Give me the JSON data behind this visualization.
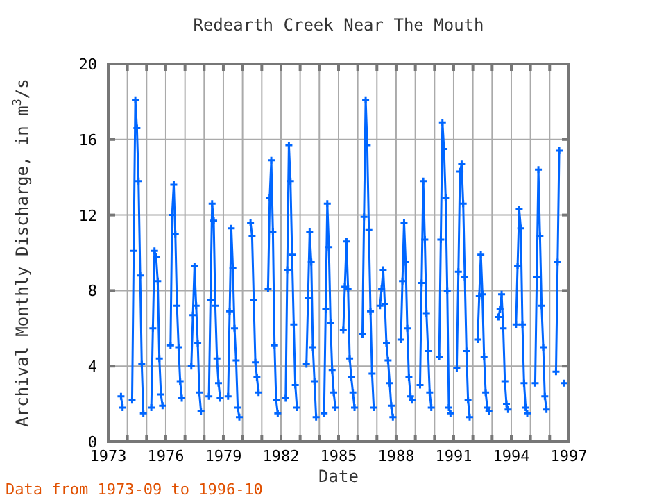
{
  "chart_data": {
    "type": "line",
    "title": "Redearth Creek Near The Mouth",
    "xlabel": "Date",
    "ylabel": "Archival Monthly Discharge, in m$^{3}$/s",
    "annotations": [
      "Data from 1973-09 to 1996-10"
    ],
    "x": [
      "1973-09",
      "1973-10",
      "1974-01",
      "1974-04",
      "1974-05",
      "1974-06",
      "1974-07",
      "1974-08",
      "1974-09",
      "1974-10",
      "1974-11",
      "1975-01",
      "1975-04",
      "1975-05",
      "1975-06",
      "1975-07",
      "1975-08",
      "1975-09",
      "1975-10",
      "1975-11",
      "1976-01",
      "1976-04",
      "1976-05",
      "1976-06",
      "1976-07",
      "1976-08",
      "1976-09",
      "1976-10",
      "1976-11",
      "1977-01",
      "1977-05",
      "1977-06",
      "1977-07",
      "1977-08",
      "1977-09",
      "1977-10",
      "1977-11",
      "1978-01",
      "1978-04",
      "1978-05",
      "1978-06",
      "1978-07",
      "1978-08",
      "1978-09",
      "1978-10",
      "1978-11",
      "1979-01",
      "1979-04",
      "1979-05",
      "1979-06",
      "1979-07",
      "1979-08",
      "1979-09",
      "1979-10",
      "1979-11",
      "1980-01",
      "1980-06",
      "1980-07",
      "1980-08",
      "1980-09",
      "1980-10",
      "1980-11",
      "1981-01",
      "1981-05",
      "1981-06",
      "1981-07",
      "1981-08",
      "1981-09",
      "1981-10",
      "1981-11",
      "1982-01",
      "1982-04",
      "1982-05",
      "1982-06",
      "1982-07",
      "1982-08",
      "1982-09",
      "1982-10",
      "1982-11",
      "1983-01",
      "1983-05",
      "1983-06",
      "1983-07",
      "1983-08",
      "1983-09",
      "1983-10",
      "1983-11",
      "1984-01",
      "1984-04",
      "1984-05",
      "1984-06",
      "1984-07",
      "1984-08",
      "1984-09",
      "1984-10",
      "1984-11",
      "1985-01",
      "1985-04",
      "1985-05",
      "1985-06",
      "1985-07",
      "1985-08",
      "1985-09",
      "1985-10",
      "1985-11",
      "1986-01",
      "1986-04",
      "1986-05",
      "1986-06",
      "1986-07",
      "1986-08",
      "1986-09",
      "1986-10",
      "1986-11",
      "1987-01",
      "1987-03",
      "1987-04",
      "1987-05",
      "1987-06",
      "1987-07",
      "1987-08",
      "1987-09",
      "1987-10",
      "1987-11",
      "1988-01",
      "1988-04",
      "1988-05",
      "1988-06",
      "1988-07",
      "1988-08",
      "1988-09",
      "1988-10",
      "1988-11",
      "1989-01",
      "1989-04",
      "1989-05",
      "1989-06",
      "1989-07",
      "1989-08",
      "1989-09",
      "1989-10",
      "1989-11",
      "1990-01",
      "1990-04",
      "1990-05",
      "1990-06",
      "1990-07",
      "1990-08",
      "1990-09",
      "1990-10",
      "1990-11",
      "1991-01",
      "1991-03",
      "1991-04",
      "1991-05",
      "1991-06",
      "1991-07",
      "1991-08",
      "1991-09",
      "1991-10",
      "1991-11",
      "1992-01",
      "1992-04",
      "1992-05",
      "1992-06",
      "1992-07",
      "1992-08",
      "1992-09",
      "1992-10",
      "1992-11",
      "1993-01",
      "1993-05",
      "1993-06",
      "1993-07",
      "1993-08",
      "1993-09",
      "1993-10",
      "1993-11",
      "1994-01",
      "1994-04",
      "1994-05",
      "1994-06",
      "1994-07",
      "1994-08",
      "1994-09",
      "1994-10",
      "1994-11",
      "1995-01",
      "1995-04",
      "1995-05",
      "1995-06",
      "1995-07",
      "1995-08",
      "1995-09",
      "1995-10",
      "1995-11",
      "1996-01",
      "1996-05",
      "1996-06",
      "1996-07",
      "1996-09",
      "1996-10"
    ],
    "series": [
      {
        "color": "#0066ff",
        "values": [
          2.4,
          1.8,
          null,
          2.2,
          10.1,
          18.1,
          16.6,
          13.8,
          8.8,
          4.1,
          1.5,
          null,
          1.8,
          6.0,
          10.1,
          9.8,
          8.5,
          4.4,
          2.5,
          1.9,
          null,
          5.1,
          12.0,
          13.6,
          11.0,
          7.2,
          5.0,
          3.2,
          2.3,
          null,
          4.0,
          6.7,
          9.3,
          7.2,
          5.2,
          2.6,
          1.6,
          null,
          2.4,
          7.5,
          12.6,
          11.7,
          7.2,
          4.4,
          3.1,
          2.3,
          null,
          2.4,
          6.9,
          11.3,
          9.2,
          6.0,
          4.3,
          1.8,
          1.3,
          null,
          11.6,
          10.9,
          7.5,
          4.2,
          3.4,
          2.6,
          null,
          8.1,
          12.9,
          14.9,
          11.1,
          5.1,
          2.2,
          1.5,
          null,
          2.3,
          9.1,
          15.7,
          13.8,
          9.9,
          6.2,
          3.0,
          1.8,
          null,
          4.1,
          7.6,
          11.1,
          9.5,
          5.0,
          3.2,
          1.3,
          null,
          1.5,
          7.0,
          12.6,
          10.3,
          6.3,
          3.8,
          2.6,
          1.8,
          null,
          5.9,
          8.2,
          10.6,
          8.1,
          4.4,
          3.4,
          2.6,
          1.8,
          null,
          5.7,
          11.9,
          18.1,
          15.7,
          11.2,
          6.9,
          3.6,
          1.8,
          null,
          7.2,
          8.1,
          9.1,
          7.3,
          5.2,
          4.3,
          3.1,
          1.9,
          1.3,
          null,
          5.4,
          8.5,
          11.6,
          9.5,
          6.0,
          3.4,
          2.4,
          2.2,
          null,
          3.0,
          8.4,
          13.8,
          10.7,
          6.8,
          4.8,
          2.6,
          1.8,
          null,
          4.5,
          10.7,
          16.9,
          15.5,
          12.9,
          8.0,
          1.8,
          1.5,
          null,
          3.9,
          9.0,
          14.3,
          14.7,
          12.6,
          8.7,
          4.8,
          2.2,
          1.3,
          null,
          5.4,
          7.7,
          9.9,
          7.8,
          4.5,
          2.6,
          1.8,
          1.6,
          null,
          6.6,
          7.0,
          7.8,
          6.0,
          3.2,
          2.0,
          1.7,
          null,
          6.2,
          9.3,
          12.3,
          11.3,
          6.2,
          3.1,
          1.8,
          1.5,
          null,
          3.1,
          8.7,
          14.4,
          10.9,
          7.2,
          5.0,
          2.4,
          1.7,
          null,
          3.7,
          9.5,
          15.4,
          null,
          3.1
        ]
      }
    ],
    "xlim": [
      "1973",
      "1997"
    ],
    "xticks": [
      {
        "value": "1973",
        "label": "1973"
      },
      {
        "value": "1974",
        "label": null
      },
      {
        "value": "1975",
        "label": null
      },
      {
        "value": "1976",
        "label": "1976"
      },
      {
        "value": "1977",
        "label": null
      },
      {
        "value": "1978",
        "label": null
      },
      {
        "value": "1979",
        "label": "1979"
      },
      {
        "value": "1980",
        "label": null
      },
      {
        "value": "1981",
        "label": null
      },
      {
        "value": "1982",
        "label": "1982"
      },
      {
        "value": "1983",
        "label": null
      },
      {
        "value": "1984",
        "label": null
      },
      {
        "value": "1985",
        "label": "1985"
      },
      {
        "value": "1986",
        "label": null
      },
      {
        "value": "1987",
        "label": null
      },
      {
        "value": "1988",
        "label": "1988"
      },
      {
        "value": "1989",
        "label": null
      },
      {
        "value": "1990",
        "label": null
      },
      {
        "value": "1991",
        "label": "1991"
      },
      {
        "value": "1992",
        "label": null
      },
      {
        "value": "1993",
        "label": null
      },
      {
        "value": "1994",
        "label": "1994"
      },
      {
        "value": "1995",
        "label": null
      },
      {
        "value": "1996",
        "label": null
      },
      {
        "value": "1997",
        "label": "1997"
      }
    ],
    "ylim": [
      0,
      20
    ],
    "yticks": [
      0,
      4,
      8,
      12,
      16,
      20
    ],
    "grid": true,
    "marker": "cross",
    "line_style": "solid"
  }
}
